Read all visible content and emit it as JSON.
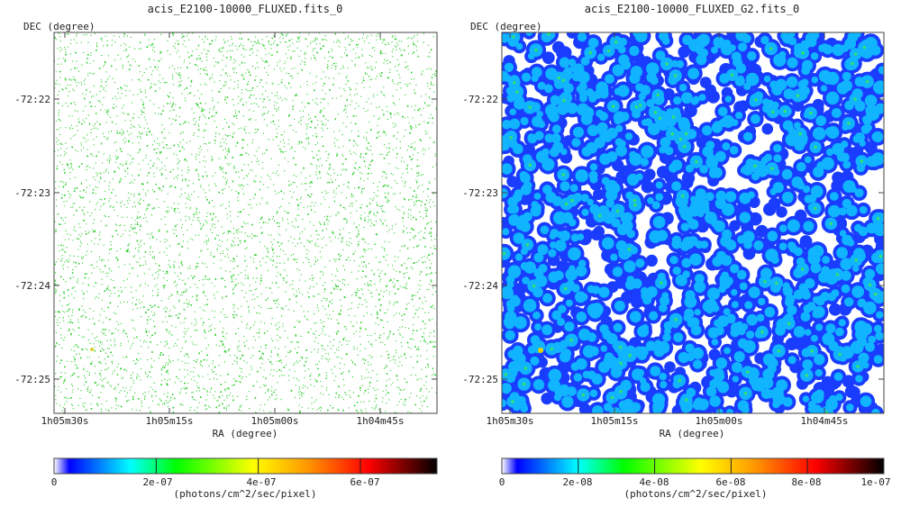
{
  "chart_data": [
    {
      "type": "heatmap",
      "title": "acis_E2100-10000_FLUXED.fits_0",
      "xlabel": "RA (degree)",
      "ylabel": "DEC (degree)",
      "x_ticks": [
        "1h05m30s",
        "1h05m15s",
        "1h05m00s",
        "1h04m45s"
      ],
      "y_ticks": [
        "-72:22",
        "-72:23",
        "-72:24",
        "-72:25"
      ],
      "colorbar": {
        "label": "(photons/cm^2/sec/pixel)",
        "ticks": [
          {
            "label": "0",
            "value": 0
          },
          {
            "label": "2e-07",
            "value": 2e-07
          },
          {
            "label": "4e-07",
            "value": 4e-07
          },
          {
            "label": "6e-07",
            "value": 6e-07
          }
        ],
        "range": [
          0,
          7.5e-07
        ],
        "colors": [
          "#ffffff",
          "#0000ff",
          "#00ffff",
          "#00ff00",
          "#ffff00",
          "#ff8800",
          "#ff0000",
          "#000000"
        ]
      },
      "appearance": "sparse-points",
      "point_color": "#22cc22"
    },
    {
      "type": "heatmap",
      "title": "acis_E2100-10000_FLUXED_G2.fits_0",
      "xlabel": "RA (degree)",
      "ylabel": "DEC (degree)",
      "x_ticks": [
        "1h05m30s",
        "1h05m15s",
        "1h05m00s",
        "1h04m45s"
      ],
      "y_ticks": [
        "-72:22",
        "-72:23",
        "-72:24",
        "-72:25"
      ],
      "colorbar": {
        "label": "(photons/cm^2/sec/pixel)",
        "ticks": [
          {
            "label": "0",
            "value": 0
          },
          {
            "label": "2e-08",
            "value": 2e-08
          },
          {
            "label": "4e-08",
            "value": 4e-08
          },
          {
            "label": "6e-08",
            "value": 6e-08
          },
          {
            "label": "8e-08",
            "value": 8e-08
          },
          {
            "label": "1e-07",
            "value": 1e-07
          }
        ],
        "range": [
          0,
          1e-07
        ],
        "colors": [
          "#ffffff",
          "#0000ff",
          "#00ffff",
          "#00ff00",
          "#ffff00",
          "#ff8800",
          "#ff0000",
          "#000000"
        ]
      },
      "appearance": "smoothed-blobs",
      "blob_colors": [
        "#1a3cff",
        "#10b4ff",
        "#30e070"
      ]
    }
  ]
}
